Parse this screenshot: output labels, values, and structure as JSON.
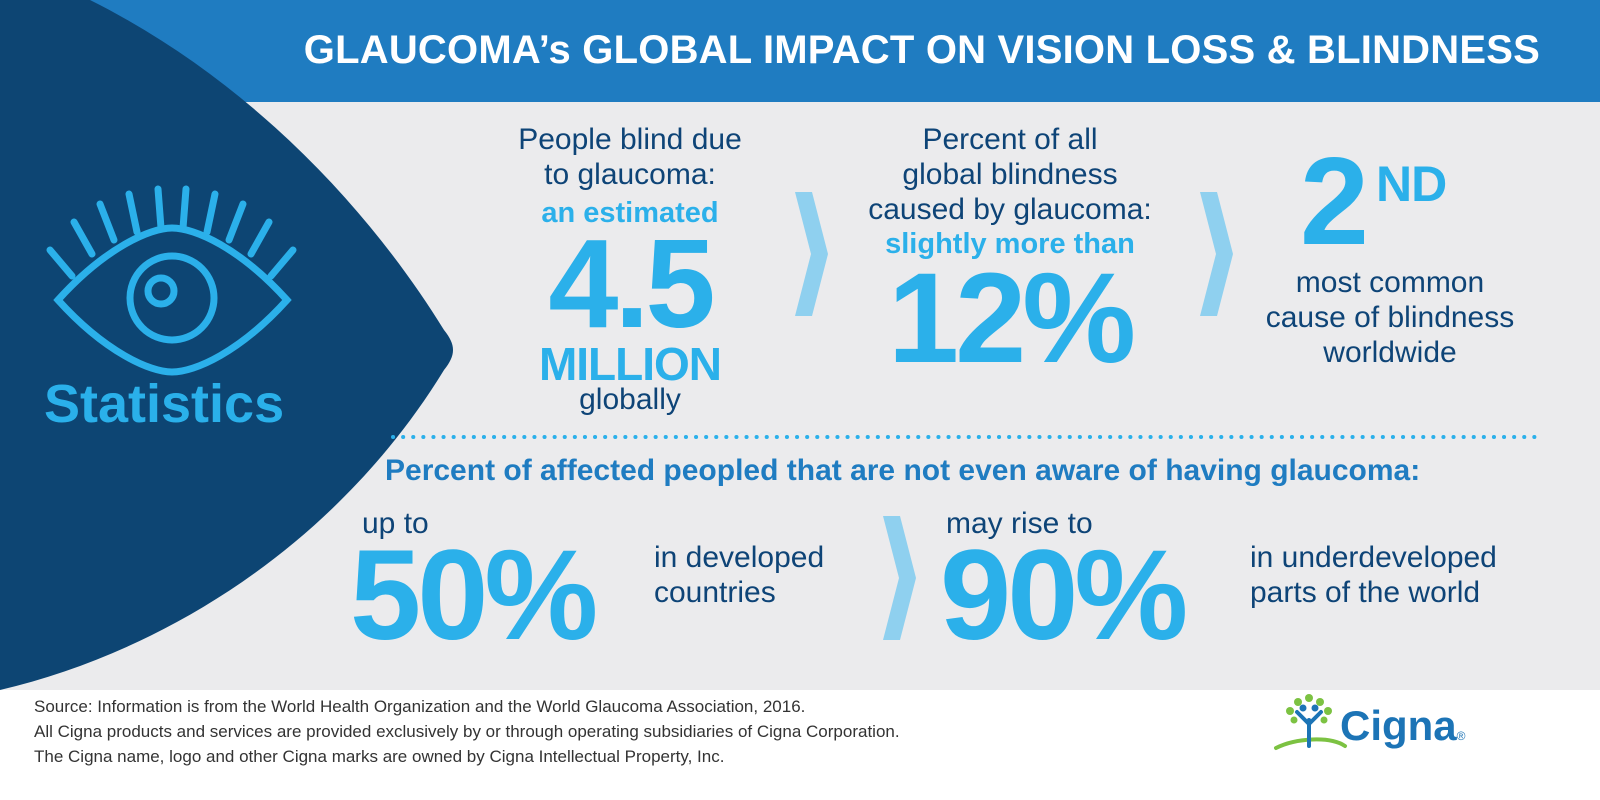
{
  "header": {
    "title": "GLAUCOMA’s GLOBAL IMPACT ON VISION LOSS & BLINDNESS"
  },
  "sidebar": {
    "label": "Statistics",
    "icon": "eye-icon"
  },
  "stat_blind": {
    "line1": "People blind due",
    "line2": "to glaucoma:",
    "qualifier": "an estimated",
    "value": "4.5",
    "unit": "MILLION",
    "scope": "globally"
  },
  "stat_percent": {
    "line1": "Percent of all",
    "line2": "global blindness",
    "line3": "caused by glaucoma:",
    "qualifier": "slightly more than",
    "value": "12%"
  },
  "stat_rank": {
    "value": "2",
    "suffix": "ND",
    "line1": "most common",
    "line2": "cause of blindness",
    "line3": "worldwide"
  },
  "awareness": {
    "heading": "Percent of affected peopled that are not even aware of having glaucoma:",
    "developed": {
      "prefix": "up to",
      "value": "50%",
      "line1": "in developed",
      "line2": "countries"
    },
    "underdeveloped": {
      "prefix": "may rise to",
      "value": "90%",
      "line1": "in underdeveloped",
      "line2": "parts of the world"
    }
  },
  "footer": {
    "source_line1": "Source: Information is from the World Health Organization and the World Glaucoma Association, 2016.",
    "source_line2": "All Cigna products and services are provided exclusively by or through operating subsidiaries of Cigna Corporation.",
    "source_line3": "The Cigna name, logo and other Cigna marks are owned by Cigna Intellectual Property, Inc.",
    "brand": "Cigna",
    "trademark": "®",
    "logo_icon": "cigna-tree-logo-icon"
  },
  "colors": {
    "header_blue": "#1f7cc1",
    "navy": "#0e4477",
    "sky": "#2bb0ea",
    "panel_gray": "#ebebed",
    "chevron": "#8fd0ef",
    "logo_green": "#7cc242"
  }
}
